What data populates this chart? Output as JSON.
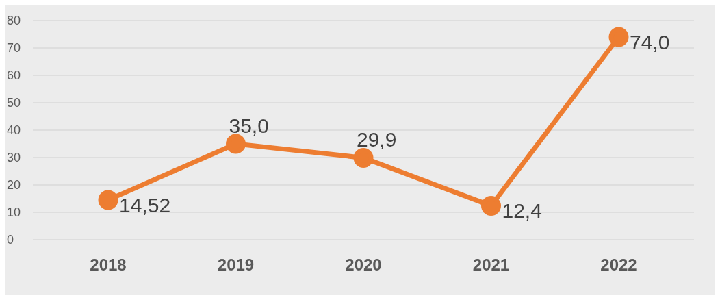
{
  "chart_data": {
    "type": "line",
    "categories": [
      "2018",
      "2019",
      "2020",
      "2021",
      "2022"
    ],
    "series": [
      {
        "color": "#ed7d31",
        "values": [
          14.52,
          35,
          29.9,
          12.4,
          74
        ],
        "value_labels": [
          "14,52",
          "35,0",
          "29,9",
          "12,4",
          "74,0"
        ]
      }
    ],
    "ylim": [
      0,
      80
    ],
    "yticks": [
      0,
      10,
      20,
      30,
      40,
      50,
      60,
      70,
      80
    ],
    "grid": "y",
    "legend": false,
    "marker": "circle",
    "line_style": "solid"
  }
}
